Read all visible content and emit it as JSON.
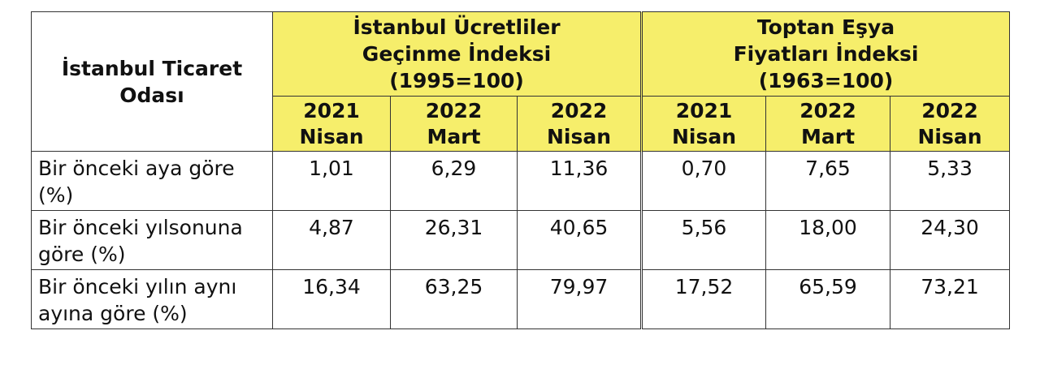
{
  "table": {
    "corner": [
      "İstanbul Ticaret",
      "Odası"
    ],
    "groups": [
      [
        "İstanbul Ücretliler",
        "Geçinme İndeksi",
        "(1995=100)"
      ],
      [
        "Toptan Eşya",
        "Fiyatları İndeksi",
        "(1963=100)"
      ]
    ],
    "columns": [
      [
        "2021",
        "Nisan"
      ],
      [
        "2022",
        "Mart"
      ],
      [
        "2022",
        "Nisan"
      ],
      [
        "2021",
        "Nisan"
      ],
      [
        "2022",
        "Mart"
      ],
      [
        "2022",
        "Nisan"
      ]
    ],
    "rows": [
      {
        "label": [
          "Bir önceki aya göre",
          "(%)"
        ],
        "cells": [
          "1,01",
          "6,29",
          "11,36",
          "0,70",
          "7,65",
          "5,33"
        ]
      },
      {
        "label": [
          "Bir önceki yılsonuna",
          "göre (%)"
        ],
        "cells": [
          "4,87",
          "26,31",
          "40,65",
          "5,56",
          "18,00",
          "24,30"
        ]
      },
      {
        "label": [
          "Bir önceki yılın aynı",
          "ayına göre (%)"
        ],
        "cells": [
          "16,34",
          "63,25",
          "79,97",
          "17,52",
          "65,59",
          "73,21"
        ]
      }
    ]
  }
}
